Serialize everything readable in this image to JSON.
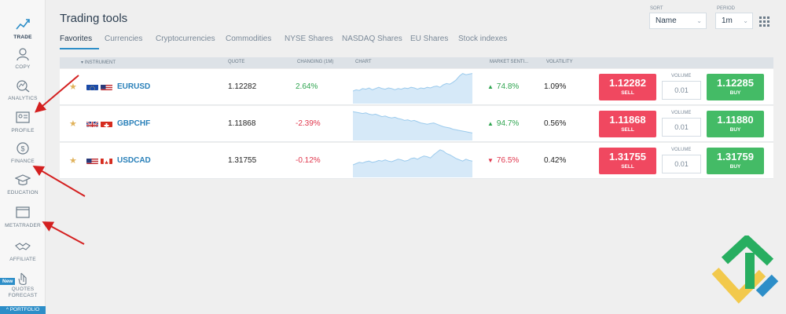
{
  "sidebar": {
    "items": [
      {
        "label": "TRADE",
        "icon": "trade-icon"
      },
      {
        "label": "COPY",
        "icon": "copy-icon"
      },
      {
        "label": "ANALYTICS",
        "icon": "analytics-icon"
      },
      {
        "label": "PROFILE",
        "icon": "profile-icon"
      },
      {
        "label": "FINANCE",
        "icon": "finance-icon"
      },
      {
        "label": "EDUCATION",
        "icon": "education-icon"
      },
      {
        "label": "METATRADER",
        "icon": "metatrader-icon"
      },
      {
        "label": "AFFILIATE",
        "icon": "affiliate-icon"
      },
      {
        "label": "QUOTES FORECAST",
        "icon": "forecast-icon"
      }
    ],
    "new_badge": "New",
    "portfolio": "^ PORTFOLIO"
  },
  "header": {
    "title": "Trading tools",
    "sort_label": "SORT",
    "sort_value": "Name",
    "period_label": "PERIOD",
    "period_value": "1m"
  },
  "tabs": [
    "Favorites",
    "Currencies",
    "Cryptocurrencies",
    "Commodities",
    "NYSE Shares",
    "NASDAQ Shares",
    "EU Shares",
    "Stock indexes"
  ],
  "table": {
    "headers": {
      "instrument": "▾ INSTRUMENT",
      "quote": "QUOTE",
      "changing": "CHANGING (1M)",
      "chart": "CHART",
      "sentiment": "MARKET SENTI...",
      "volatility": "VOLATILITY"
    },
    "rows": [
      {
        "symbol": "EURUSD",
        "quote": "1.12282",
        "change": "2.64%",
        "change_dir": "pos",
        "sentiment": "74.8%",
        "sentiment_arrow": "▲",
        "sentiment_dir": "pos",
        "volatility": "1.09%",
        "sell": "1.12282",
        "buy": "1.12285",
        "volume": "0.01",
        "flags": [
          "eu",
          "us"
        ],
        "spark": [
          20,
          22,
          21,
          24,
          23,
          25,
          22,
          24,
          26,
          24,
          23,
          25,
          24,
          22,
          24,
          23,
          25,
          24,
          26,
          25,
          23,
          25,
          24,
          26,
          25,
          27,
          28,
          26,
          30,
          32,
          31,
          34,
          38,
          44,
          48,
          46,
          47,
          48
        ]
      },
      {
        "symbol": "GBPCHF",
        "quote": "1.11868",
        "change": "-2.39%",
        "change_dir": "neg",
        "sentiment": "94.7%",
        "sentiment_arrow": "▲",
        "sentiment_dir": "pos",
        "volatility": "0.56%",
        "sell": "1.11868",
        "buy": "1.11880",
        "volume": "0.01",
        "flags": [
          "gb",
          "ch"
        ],
        "spark": [
          46,
          45,
          44,
          43,
          44,
          42,
          41,
          42,
          40,
          38,
          39,
          37,
          36,
          37,
          35,
          34,
          32,
          33,
          31,
          32,
          30,
          28,
          27,
          26,
          27,
          28,
          26,
          24,
          22,
          21,
          20,
          18,
          17,
          16,
          15,
          14,
          13,
          12
        ]
      },
      {
        "symbol": "USDCAD",
        "quote": "1.31755",
        "change": "-0.12%",
        "change_dir": "neg",
        "sentiment": "76.5%",
        "sentiment_arrow": "▼",
        "sentiment_dir": "neg",
        "volatility": "0.42%",
        "sell": "1.31755",
        "buy": "1.31759",
        "volume": "0.01",
        "flags": [
          "us",
          "ca"
        ],
        "spark": [
          20,
          22,
          24,
          23,
          25,
          26,
          24,
          25,
          27,
          26,
          28,
          26,
          25,
          27,
          29,
          28,
          26,
          27,
          30,
          31,
          29,
          32,
          34,
          33,
          31,
          36,
          40,
          44,
          42,
          38,
          36,
          33,
          30,
          28,
          26,
          29,
          27,
          26
        ]
      }
    ],
    "sell_label": "SELL",
    "buy_label": "BUY",
    "volume_label": "VOLUME"
  },
  "colors": {
    "accent": "#2d8ec8",
    "sell": "#f04860",
    "buy": "#44bb66",
    "positive": "#2ea44f",
    "negative": "#e0364c",
    "annotation_arrow": "#d42020"
  }
}
